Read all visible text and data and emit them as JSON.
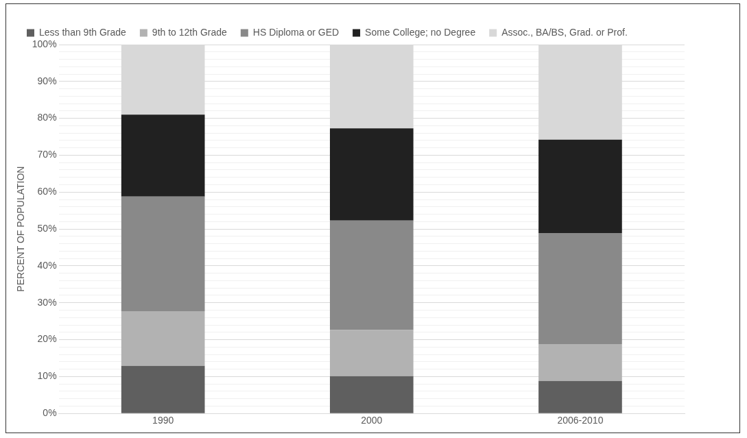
{
  "chart_data": {
    "type": "bar",
    "stacked": true,
    "ylabel": "PERCENT OF POPULATION",
    "categories": [
      "1990",
      "2000",
      "2006-2010"
    ],
    "series": [
      {
        "name": "Less than 9th Grade",
        "color": "#5f5f5f",
        "values": [
          12.9,
          10.1,
          8.8
        ]
      },
      {
        "name": "9th to 12th Grade",
        "color": "#b2b2b2",
        "values": [
          14.8,
          12.5,
          10.0
        ]
      },
      {
        "name": "HS Diploma or GED",
        "color": "#898989",
        "values": [
          31.1,
          29.7,
          30.1
        ]
      },
      {
        "name": "Some College; no Degree",
        "color": "#212121",
        "values": [
          22.2,
          25.0,
          25.3
        ]
      },
      {
        "name": "Assoc., BA/BS, Grad. or Prof.",
        "color": "#d8d8d8",
        "values": [
          19.0,
          22.7,
          25.8
        ]
      }
    ],
    "ylim": [
      0,
      100
    ],
    "yticks": [
      {
        "value": 0,
        "label": "0%"
      },
      {
        "value": 2,
        "label": null
      },
      {
        "value": 4,
        "label": null
      },
      {
        "value": 6,
        "label": null
      },
      {
        "value": 8,
        "label": null
      },
      {
        "value": 10,
        "label": "10%"
      },
      {
        "value": 12,
        "label": null
      },
      {
        "value": 14,
        "label": null
      },
      {
        "value": 16,
        "label": null
      },
      {
        "value": 18,
        "label": null
      },
      {
        "value": 20,
        "label": "20%"
      },
      {
        "value": 22,
        "label": null
      },
      {
        "value": 24,
        "label": null
      },
      {
        "value": 26,
        "label": null
      },
      {
        "value": 28,
        "label": null
      },
      {
        "value": 30,
        "label": "30%"
      },
      {
        "value": 32,
        "label": null
      },
      {
        "value": 34,
        "label": null
      },
      {
        "value": 36,
        "label": null
      },
      {
        "value": 38,
        "label": null
      },
      {
        "value": 40,
        "label": "40%"
      },
      {
        "value": 42,
        "label": null
      },
      {
        "value": 44,
        "label": null
      },
      {
        "value": 46,
        "label": null
      },
      {
        "value": 48,
        "label": null
      },
      {
        "value": 50,
        "label": "50%"
      },
      {
        "value": 52,
        "label": null
      },
      {
        "value": 54,
        "label": null
      },
      {
        "value": 56,
        "label": null
      },
      {
        "value": 58,
        "label": null
      },
      {
        "value": 60,
        "label": "60%"
      },
      {
        "value": 62,
        "label": null
      },
      {
        "value": 64,
        "label": null
      },
      {
        "value": 66,
        "label": null
      },
      {
        "value": 68,
        "label": null
      },
      {
        "value": 70,
        "label": "70%"
      },
      {
        "value": 72,
        "label": null
      },
      {
        "value": 74,
        "label": null
      },
      {
        "value": 76,
        "label": null
      },
      {
        "value": 78,
        "label": null
      },
      {
        "value": 80,
        "label": "80%"
      },
      {
        "value": 82,
        "label": null
      },
      {
        "value": 84,
        "label": null
      },
      {
        "value": 86,
        "label": null
      },
      {
        "value": 88,
        "label": null
      },
      {
        "value": 90,
        "label": "90%"
      },
      {
        "value": 92,
        "label": null
      },
      {
        "value": 94,
        "label": null
      },
      {
        "value": 96,
        "label": null
      },
      {
        "value": 98,
        "label": null
      },
      {
        "value": 100,
        "label": "100%"
      }
    ],
    "grid": "y",
    "legend": "top"
  }
}
